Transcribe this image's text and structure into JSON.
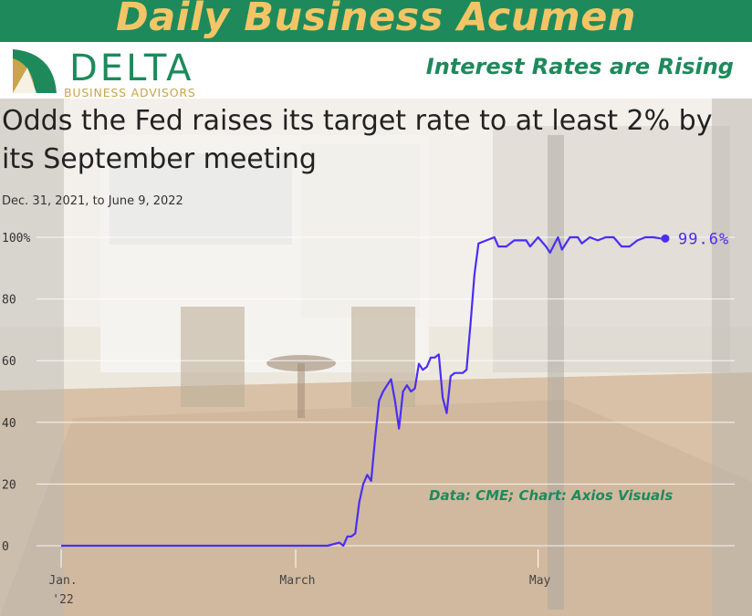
{
  "header": {
    "banner_title": "Daily Business Acumen",
    "logo_word": "DELTA",
    "logo_sub": "BUSINESS ADVISORS",
    "topic": "Interest Rates are Rising"
  },
  "colors": {
    "brand_green": "#1e8a5c",
    "brand_gold": "#f4c566",
    "line": "#4a2ef5"
  },
  "chart_data": {
    "type": "line",
    "title": "Odds the Fed raises its target rate to at least 2% by its September meeting",
    "subtitle": "Dec. 31, 2021, to June 9, 2022",
    "source": "Data: CME; Chart: Axios Visuals",
    "ylim": [
      0,
      100
    ],
    "yticks": [
      "100%",
      "80",
      "60",
      "40",
      "20",
      "0"
    ],
    "xticks": [
      {
        "label": "Jan.",
        "label2": "'22",
        "day": 0
      },
      {
        "label": "March",
        "label2": "",
        "day": 59
      },
      {
        "label": "May",
        "label2": "",
        "day": 120
      }
    ],
    "end_label": "99.6%",
    "series": [
      {
        "points": [
          [
            0,
            0
          ],
          [
            10,
            0
          ],
          [
            20,
            0
          ],
          [
            30,
            0
          ],
          [
            40,
            0
          ],
          [
            50,
            0
          ],
          [
            60,
            0
          ],
          [
            67,
            0
          ],
          [
            70,
            1
          ],
          [
            71,
            0
          ],
          [
            72,
            3
          ],
          [
            73,
            3
          ],
          [
            74,
            4
          ],
          [
            75,
            14
          ],
          [
            76,
            20
          ],
          [
            77,
            23
          ],
          [
            78,
            21
          ],
          [
            79,
            35
          ],
          [
            80,
            47
          ],
          [
            81,
            50
          ],
          [
            82,
            52
          ],
          [
            83,
            54
          ],
          [
            84,
            47
          ],
          [
            85,
            38
          ],
          [
            86,
            50
          ],
          [
            87,
            52
          ],
          [
            88,
            50
          ],
          [
            89,
            51
          ],
          [
            90,
            59
          ],
          [
            91,
            57
          ],
          [
            92,
            58
          ],
          [
            93,
            61
          ],
          [
            94,
            61
          ],
          [
            95,
            62
          ],
          [
            96,
            48
          ],
          [
            97,
            43
          ],
          [
            98,
            55
          ],
          [
            99,
            56
          ],
          [
            100,
            56
          ],
          [
            101,
            56
          ],
          [
            102,
            57
          ],
          [
            103,
            72
          ],
          [
            104,
            88
          ],
          [
            105,
            98
          ],
          [
            107,
            99
          ],
          [
            109,
            100
          ],
          [
            110,
            97
          ],
          [
            112,
            97
          ],
          [
            114,
            99
          ],
          [
            117,
            99
          ],
          [
            118,
            97
          ],
          [
            120,
            100
          ],
          [
            122,
            97
          ],
          [
            123,
            95
          ],
          [
            125,
            100
          ],
          [
            126,
            96
          ],
          [
            128,
            100
          ],
          [
            130,
            100
          ],
          [
            131,
            98
          ],
          [
            133,
            100
          ],
          [
            135,
            99
          ],
          [
            137,
            100
          ],
          [
            139,
            100
          ],
          [
            141,
            97
          ],
          [
            143,
            97
          ],
          [
            145,
            99
          ],
          [
            147,
            100
          ],
          [
            149,
            100
          ],
          [
            151,
            99.6
          ],
          [
            152,
            99.6
          ]
        ]
      }
    ]
  }
}
